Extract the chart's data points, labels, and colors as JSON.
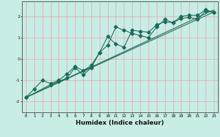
{
  "xlabel": "Humidex (Indice chaleur)",
  "x_ticks": [
    0,
    1,
    2,
    3,
    4,
    5,
    6,
    7,
    8,
    9,
    10,
    11,
    12,
    13,
    14,
    15,
    16,
    17,
    18,
    19,
    20,
    21,
    22,
    23
  ],
  "ylim": [
    -2.5,
    2.7
  ],
  "xlim": [
    -0.5,
    23.5
  ],
  "yticks": [
    -2,
    -1,
    0,
    1,
    2
  ],
  "background_color": "#c8ece6",
  "grid_color": "#e8a0a0",
  "line_color": "#1a6b5a",
  "line1_x": [
    0,
    1,
    2,
    3,
    4,
    5,
    6,
    7,
    8,
    9,
    10,
    11,
    12,
    13,
    14,
    15,
    16,
    17,
    18,
    19,
    20,
    21,
    22,
    23
  ],
  "line1_y": [
    -1.8,
    -1.4,
    -1.0,
    -1.15,
    -1.0,
    -0.7,
    -0.35,
    -0.55,
    -0.3,
    0.3,
    1.05,
    0.7,
    0.55,
    1.35,
    1.3,
    1.25,
    1.6,
    1.75,
    1.7,
    1.9,
    1.95,
    1.85,
    2.25,
    2.2
  ],
  "line2_x": [
    0,
    3,
    4,
    5,
    6,
    7,
    8,
    9,
    10,
    11,
    12,
    13,
    14,
    15,
    16,
    17,
    18,
    19,
    20,
    21,
    22,
    23
  ],
  "line2_y": [
    -1.8,
    -1.2,
    -1.05,
    -0.9,
    -0.4,
    -0.75,
    -0.4,
    0.3,
    0.65,
    1.5,
    1.35,
    1.2,
    1.1,
    1.0,
    1.5,
    1.85,
    1.7,
    2.0,
    2.05,
    2.05,
    2.3,
    2.2
  ],
  "line3_x": [
    0,
    23
  ],
  "line3_y": [
    -1.8,
    2.2
  ],
  "line4_x": [
    0,
    23
  ],
  "line4_y": [
    -1.8,
    2.3
  ]
}
